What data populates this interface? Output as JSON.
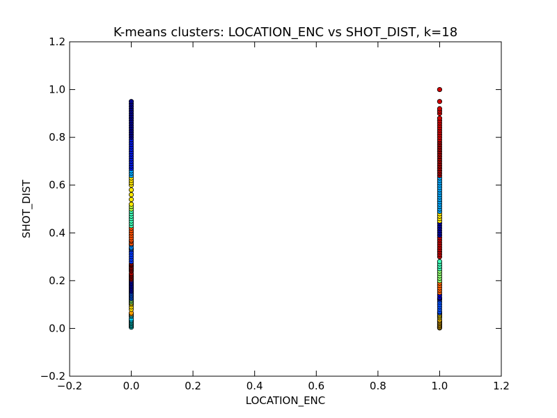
{
  "chart_data": {
    "type": "scatter",
    "title": "K-means clusters: LOCATION_ENC vs SHOT_DIST, k=18",
    "xlabel": "LOCATION_ENC",
    "ylabel": "SHOT_DIST",
    "xlim": [
      -0.2,
      1.2
    ],
    "ylim": [
      -0.2,
      1.2
    ],
    "xticks": [
      "−0.2",
      "0.0",
      "0.2",
      "0.4",
      "0.6",
      "0.8",
      "1.0",
      "1.2"
    ],
    "yticks": [
      "−0.2",
      "0.0",
      "0.2",
      "0.4",
      "0.6",
      "0.8",
      "1.0",
      "1.2"
    ],
    "xtick_values": [
      -0.2,
      0.0,
      0.2,
      0.4,
      0.6,
      0.8,
      1.0,
      1.2
    ],
    "ytick_values": [
      -0.2,
      0.0,
      0.2,
      0.4,
      0.6,
      0.8,
      1.0,
      1.2
    ],
    "grid": false,
    "series": [
      {
        "x": 0.0,
        "groups": [
          {
            "color": "#00bfbf",
            "y": [
              0.005,
              0.01,
              0.015,
              0.02,
              0.025,
              0.03
            ]
          },
          {
            "color": "#00d8ff",
            "y": [
              0.035,
              0.04,
              0.05,
              0.055
            ]
          },
          {
            "color": "#ff9f00",
            "y": [
              0.06,
              0.065
            ]
          },
          {
            "color": "#ffe000",
            "y": [
              0.08,
              0.09,
              0.1,
              0.105
            ]
          },
          {
            "color": "#8fff70",
            "y": [
              0.11,
              0.115,
              0.12
            ]
          },
          {
            "color": "#0060ff",
            "y": [
              0.125,
              0.13,
              0.135,
              0.14,
              0.145,
              0.15
            ]
          },
          {
            "color": "#0000c8",
            "y": [
              0.155,
              0.16,
              0.165,
              0.17,
              0.175,
              0.18,
              0.185,
              0.19,
              0.195,
              0.2
            ]
          },
          {
            "color": "#b00000",
            "y": [
              0.205,
              0.21,
              0.215,
              0.22,
              0.225,
              0.23,
              0.24,
              0.245,
              0.25,
              0.26
            ]
          },
          {
            "color": "#7a0000",
            "y": [
              0.255,
              0.265,
              0.27
            ]
          },
          {
            "color": "#0038ff",
            "y": [
              0.28,
              0.29,
              0.3,
              0.31,
              0.32,
              0.33
            ]
          },
          {
            "color": "#0090ff",
            "y": [
              0.335,
              0.34,
              0.35
            ]
          },
          {
            "color": "#ff5000",
            "y": [
              0.355,
              0.365,
              0.37,
              0.38,
              0.39,
              0.4,
              0.41,
              0.42
            ]
          },
          {
            "color": "#40ffb8",
            "y": [
              0.43,
              0.44,
              0.45,
              0.46,
              0.47,
              0.48,
              0.49
            ]
          },
          {
            "color": "#b8ff40",
            "y": [
              0.5,
              0.51
            ]
          },
          {
            "color": "#ffe800",
            "y": [
              0.52,
              0.54,
              0.56,
              0.58,
              0.6,
              0.61,
              0.62,
              0.63
            ]
          },
          {
            "color": "#00a8ff",
            "y": [
              0.64,
              0.65,
              0.66
            ]
          },
          {
            "color": "#0018e0",
            "y": [
              0.67,
              0.68,
              0.69,
              0.7,
              0.71,
              0.72,
              0.73,
              0.74,
              0.75,
              0.76,
              0.77,
              0.78,
              0.79
            ]
          },
          {
            "color": "#000088",
            "y": [
              0.8,
              0.81,
              0.82,
              0.83,
              0.84,
              0.85,
              0.86,
              0.87,
              0.88,
              0.89,
              0.9,
              0.91,
              0.92,
              0.93,
              0.94,
              0.95
            ]
          }
        ]
      },
      {
        "x": 1.0,
        "groups": [
          {
            "color": "#d8a000",
            "y": [
              0.002,
              0.005,
              0.01,
              0.015,
              0.02,
              0.025,
              0.03,
              0.035
            ]
          },
          {
            "color": "#ffe000",
            "y": [
              0.045,
              0.05,
              0.055,
              0.06
            ]
          },
          {
            "color": "#0050ff",
            "y": [
              0.065,
              0.07,
              0.08,
              0.09,
              0.1,
              0.11,
              0.12
            ]
          },
          {
            "color": "#0000c8",
            "y": [
              0.125,
              0.13,
              0.14
            ]
          },
          {
            "color": "#ff6000",
            "y": [
              0.15,
              0.16,
              0.17,
              0.18,
              0.19
            ]
          },
          {
            "color": "#8fff70",
            "y": [
              0.2,
              0.21,
              0.22,
              0.23,
              0.24
            ]
          },
          {
            "color": "#40ffb8",
            "y": [
              0.25,
              0.26,
              0.27,
              0.28
            ]
          },
          {
            "color": "#c00000",
            "y": [
              0.3,
              0.31,
              0.32,
              0.33,
              0.34,
              0.35,
              0.36,
              0.37,
              0.38
            ]
          },
          {
            "color": "#0000a0",
            "y": [
              0.39,
              0.4,
              0.41,
              0.42,
              0.43,
              0.44
            ]
          },
          {
            "color": "#ffe800",
            "y": [
              0.45,
              0.46,
              0.47,
              0.48
            ]
          },
          {
            "color": "#00a8ff",
            "y": [
              0.49,
              0.5,
              0.51,
              0.52,
              0.53,
              0.54,
              0.55,
              0.56,
              0.57,
              0.58,
              0.59,
              0.6,
              0.61,
              0.62,
              0.63
            ]
          },
          {
            "color": "#a00000",
            "y": [
              0.64,
              0.65,
              0.66,
              0.67,
              0.68,
              0.69,
              0.7,
              0.71,
              0.72,
              0.73,
              0.74,
              0.75,
              0.76,
              0.77,
              0.78
            ]
          },
          {
            "color": "#d00000",
            "y": [
              0.79,
              0.8,
              0.81,
              0.82,
              0.83,
              0.84,
              0.85,
              0.86,
              0.87,
              0.88,
              0.9,
              0.91,
              0.92,
              0.95,
              1.0
            ]
          }
        ]
      }
    ]
  }
}
